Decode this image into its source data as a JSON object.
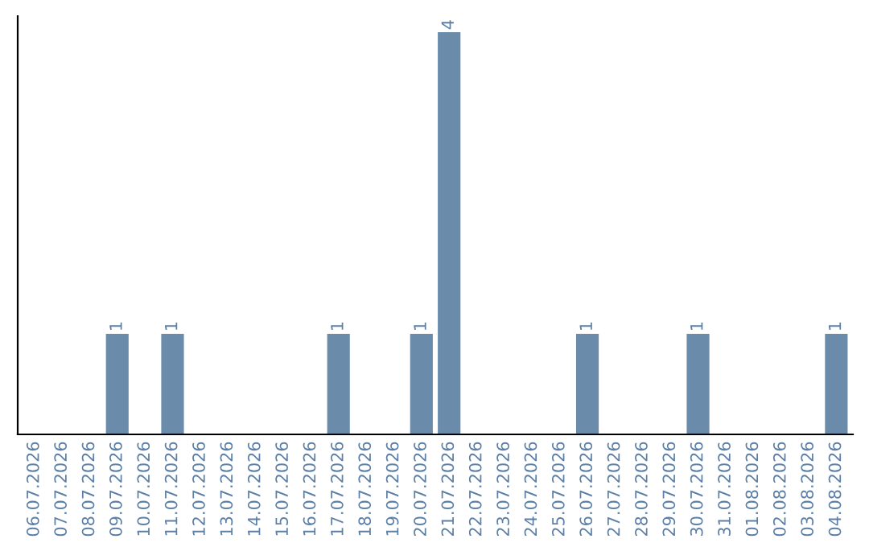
{
  "chart_data": {
    "type": "bar",
    "categories": [
      "06.07.2026",
      "07.07.2026",
      "08.07.2026",
      "09.07.2026",
      "10.07.2026",
      "11.07.2026",
      "12.07.2026",
      "13.07.2026",
      "14.07.2026",
      "15.07.2026",
      "16.07.2026",
      "17.07.2026",
      "18.07.2026",
      "19.07.2026",
      "20.07.2026",
      "21.07.2026",
      "22.07.2026",
      "23.07.2026",
      "24.07.2026",
      "25.07.2026",
      "26.07.2026",
      "27.07.2026",
      "28.07.2026",
      "29.07.2026",
      "30.07.2026",
      "31.07.2026",
      "01.08.2026",
      "02.08.2026",
      "03.08.2026",
      "04.08.2026"
    ],
    "values": [
      0,
      0,
      0,
      1,
      0,
      1,
      0,
      0,
      0,
      0,
      0,
      1,
      0,
      0,
      1,
      4,
      0,
      0,
      0,
      0,
      1,
      0,
      0,
      0,
      1,
      0,
      0,
      0,
      0,
      1
    ],
    "value_labels": [
      null,
      null,
      null,
      "1",
      null,
      "1",
      null,
      null,
      null,
      null,
      null,
      "1",
      null,
      null,
      "1",
      "4",
      null,
      null,
      null,
      null,
      "1",
      null,
      null,
      null,
      "1",
      null,
      null,
      null,
      null,
      "1"
    ],
    "color": "#6a8caa",
    "tick_labels": "x",
    "grid": false,
    "legend": false
  }
}
